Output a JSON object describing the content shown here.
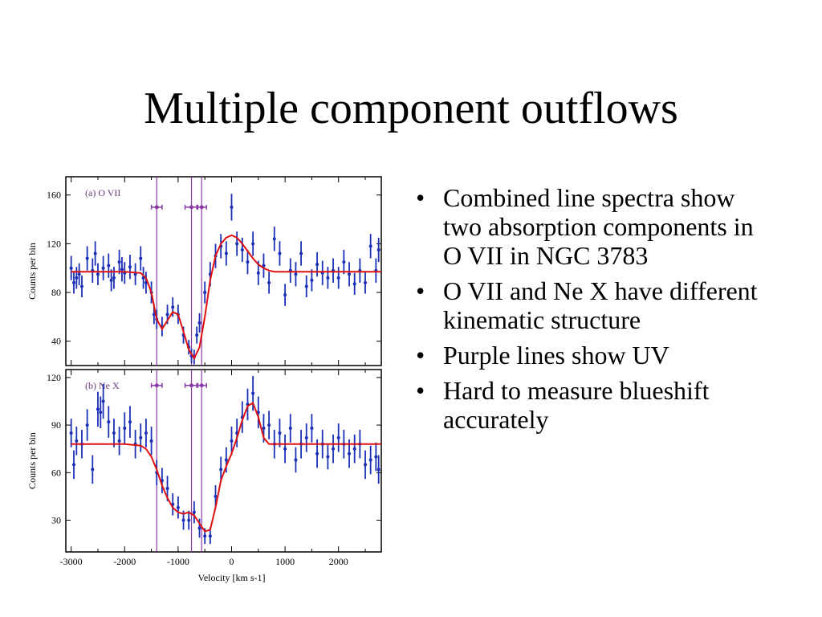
{
  "slide": {
    "title": "Multiple component outflows",
    "bullets": [
      "Combined line spectra show two absorption components in O VII in NGC 3783",
      "O VII and Ne X have different kinematic structure",
      "Purple lines show UV",
      "Hard to measure blueshift accurately"
    ]
  },
  "chart_data": [
    {
      "type": "scatter",
      "panel_label": "(a) O VII",
      "xlabel": "Velocity [km s-1]",
      "ylabel": "Counts per bin",
      "xlim": [
        -3100,
        2800
      ],
      "ylim": [
        20,
        175
      ],
      "yticks": [
        40,
        80,
        120,
        160
      ],
      "grid": false,
      "colors": {
        "data": "#1a2fb5",
        "model": "#e01010",
        "uv": "#8a3aa8"
      },
      "uv_velocities": [
        -1400,
        -750,
        -560
      ],
      "uv_bars": [
        {
          "center": -1400,
          "xerr": 100,
          "y": 150
        },
        {
          "center": -750,
          "xerr": 120,
          "y": 150
        },
        {
          "center": -560,
          "xerr": 90,
          "y": 150
        }
      ],
      "series": [
        {
          "name": "data",
          "x": [
            -3000,
            -2950,
            -2900,
            -2850,
            -2800,
            -2700,
            -2600,
            -2550,
            -2500,
            -2400,
            -2300,
            -2250,
            -2200,
            -2100,
            -2050,
            -2000,
            -1900,
            -1800,
            -1700,
            -1650,
            -1600,
            -1500,
            -1450,
            -1400,
            -1300,
            -1200,
            -1100,
            -1000,
            -900,
            -800,
            -750,
            -700,
            -650,
            -600,
            -500,
            -400,
            -300,
            -200,
            -100,
            0,
            100,
            200,
            300,
            400,
            500,
            600,
            700,
            800,
            900,
            1000,
            1100,
            1200,
            1300,
            1400,
            1500,
            1600,
            1700,
            1800,
            1900,
            2000,
            2100,
            2200,
            2300,
            2400,
            2500,
            2600,
            2700,
            2750
          ],
          "y": [
            100,
            88,
            92,
            95,
            85,
            108,
            98,
            112,
            95,
            100,
            102,
            90,
            92,
            105,
            99,
            96,
            101,
            95,
            108,
            92,
            88,
            80,
            62,
            58,
            52,
            62,
            68,
            62,
            45,
            35,
            28,
            27,
            45,
            55,
            80,
            95,
            110,
            118,
            112,
            150,
            120,
            115,
            105,
            120,
            96,
            102,
            88,
            124,
            112,
            78,
            98,
            95,
            112,
            85,
            90,
            103,
            96,
            92,
            98,
            92,
            105,
            95,
            87,
            98,
            88,
            118,
            98,
            115
          ],
          "yerr": [
            10,
            9,
            9,
            9,
            9,
            10,
            10,
            10,
            9,
            10,
            10,
            9,
            9,
            10,
            10,
            9,
            10,
            9,
            10,
            9,
            9,
            9,
            8,
            8,
            8,
            8,
            8,
            8,
            7,
            6,
            6,
            6,
            7,
            8,
            9,
            10,
            10,
            10,
            10,
            11,
            10,
            10,
            10,
            10,
            10,
            10,
            9,
            10,
            10,
            9,
            10,
            10,
            10,
            9,
            9,
            10,
            10,
            9,
            10,
            9,
            10,
            10,
            9,
            10,
            9,
            10,
            10,
            10
          ]
        },
        {
          "name": "model",
          "x": [
            -3000,
            -2500,
            -2000,
            -1700,
            -1600,
            -1500,
            -1400,
            -1300,
            -1200,
            -1100,
            -1000,
            -900,
            -800,
            -700,
            -600,
            -500,
            -400,
            -300,
            -200,
            -100,
            0,
            100,
            200,
            300,
            400,
            500,
            600,
            700,
            800,
            1000,
            1500,
            2000,
            2800
          ],
          "y": [
            97,
            97,
            97,
            96,
            92,
            80,
            58,
            50,
            57,
            64,
            62,
            48,
            33,
            26,
            35,
            60,
            90,
            110,
            120,
            125,
            127,
            125,
            120,
            114,
            108,
            103,
            100,
            98,
            97,
            97,
            97,
            97,
            97
          ]
        }
      ]
    },
    {
      "type": "scatter",
      "panel_label": "(b) Ne X",
      "xlabel": "Velocity [km s-1]",
      "ylabel": "Counts per bin",
      "xlim": [
        -3100,
        2800
      ],
      "ylim": [
        10,
        125
      ],
      "yticks": [
        30,
        60,
        90,
        120
      ],
      "xticks": [
        -3000,
        -2000,
        -1000,
        0,
        1000,
        2000
      ],
      "grid": false,
      "colors": {
        "data": "#1a2fb5",
        "model": "#e01010",
        "uv": "#8a3aa8"
      },
      "uv_velocities": [
        -1400,
        -750,
        -560
      ],
      "uv_bars": [
        {
          "center": -1400,
          "xerr": 100,
          "y": 115
        },
        {
          "center": -750,
          "xerr": 120,
          "y": 115
        },
        {
          "center": -560,
          "xerr": 90,
          "y": 115
        }
      ],
      "series": [
        {
          "name": "data",
          "x": [
            -3000,
            -2950,
            -2900,
            -2800,
            -2700,
            -2600,
            -2500,
            -2450,
            -2400,
            -2300,
            -2200,
            -2100,
            -2000,
            -1900,
            -1800,
            -1700,
            -1600,
            -1500,
            -1400,
            -1300,
            -1200,
            -1100,
            -1000,
            -900,
            -800,
            -700,
            -600,
            -500,
            -400,
            -300,
            -200,
            -100,
            0,
            100,
            200,
            300,
            400,
            500,
            600,
            700,
            800,
            900,
            1000,
            1100,
            1200,
            1300,
            1400,
            1500,
            1600,
            1700,
            1800,
            1900,
            2000,
            2100,
            2200,
            2300,
            2400,
            2500,
            2600,
            2700,
            2750
          ],
          "y": [
            85,
            65,
            80,
            78,
            90,
            62,
            100,
            98,
            105,
            92,
            85,
            80,
            88,
            92,
            78,
            82,
            85,
            80,
            60,
            55,
            50,
            40,
            38,
            30,
            30,
            35,
            25,
            20,
            20,
            45,
            62,
            68,
            80,
            85,
            95,
            103,
            110,
            98,
            88,
            90,
            78,
            85,
            75,
            88,
            68,
            78,
            82,
            88,
            72,
            78,
            70,
            75,
            82,
            78,
            72,
            75,
            78,
            65,
            68,
            70,
            62
          ],
          "yerr": [
            9,
            9,
            9,
            9,
            10,
            9,
            11,
            10,
            11,
            10,
            9,
            9,
            10,
            10,
            9,
            9,
            9,
            9,
            8,
            8,
            8,
            7,
            7,
            6,
            6,
            7,
            6,
            5,
            5,
            7,
            8,
            8,
            9,
            9,
            10,
            10,
            11,
            10,
            9,
            9,
            9,
            9,
            9,
            9,
            8,
            9,
            9,
            9,
            9,
            9,
            8,
            9,
            9,
            9,
            9,
            9,
            9,
            9,
            9,
            9,
            9
          ]
        },
        {
          "name": "model",
          "x": [
            -3000,
            -2500,
            -2000,
            -1700,
            -1600,
            -1500,
            -1400,
            -1300,
            -1200,
            -1100,
            -1000,
            -900,
            -800,
            -700,
            -600,
            -500,
            -400,
            -300,
            -200,
            -100,
            0,
            100,
            200,
            300,
            400,
            500,
            600,
            700,
            800,
            1000,
            1500,
            2000,
            2800
          ],
          "y": [
            78,
            78,
            78,
            77,
            75,
            70,
            62,
            52,
            44,
            38,
            35,
            34,
            35,
            33,
            28,
            23,
            24,
            38,
            55,
            64,
            72,
            82,
            93,
            102,
            104,
            95,
            82,
            78,
            78,
            78,
            78,
            78,
            78
          ]
        }
      ]
    }
  ]
}
